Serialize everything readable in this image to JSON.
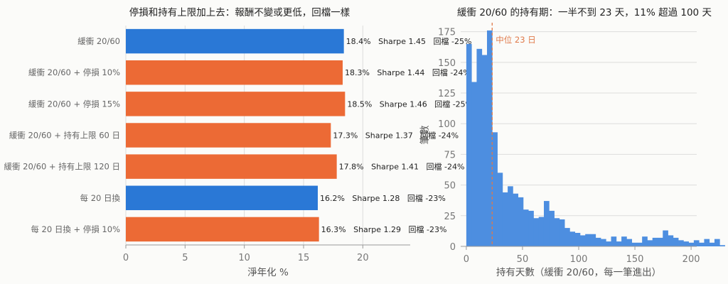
{
  "colors": {
    "baseline": "#2a78d6",
    "variant": "#ec6a35",
    "hist": "#4d8ee0",
    "median": "#e07a4a"
  },
  "chart_data": [
    {
      "type": "bar",
      "orientation": "horizontal",
      "title": "停損和持有上限加上去：報酬不變或更低，回檔一樣",
      "xlabel": "淨年化 %",
      "xlim": [
        0,
        24
      ],
      "xticks": [
        0,
        5,
        10,
        15,
        20
      ],
      "grid": "x",
      "categories": [
        "緩衝 20/60",
        "緩衝 20/60 + 停損 10%",
        "緩衝 20/60 + 停損 15%",
        "緩衝 20/60 + 持有上限 60 日",
        "緩衝 20/60 + 持有上限 120 日",
        "每 20 日換",
        "每 20 日換 + 停損 10%"
      ],
      "values": [
        18.4,
        18.3,
        18.5,
        17.3,
        17.8,
        16.2,
        16.3
      ],
      "groups": [
        "baseline",
        "variant",
        "variant",
        "variant",
        "variant",
        "baseline",
        "variant"
      ],
      "annotations": [
        "18.4%   Sharpe 1.45   回檔 -25%",
        "18.3%   Sharpe 1.44   回檔 -24%",
        "18.5%   Sharpe 1.46   回檔 -25%",
        "17.3%   Sharpe 1.37   回檔 -24%",
        "17.8%   Sharpe 1.41   回檔 -24%",
        "16.2%   Sharpe 1.28   回檔 -23%",
        "16.3%   Sharpe 1.29   回檔 -23%"
      ]
    },
    {
      "type": "histogram",
      "title": "緩衝 20/60 的持有期：一半不到 23 天，11% 超過 100 天",
      "xlabel": "持有天數（緩衝 20/60，每一筆進出）",
      "ylabel": "筆數",
      "xlim": [
        -5,
        205
      ],
      "ylim": [
        0,
        180
      ],
      "xticks": [
        0,
        50,
        100,
        150,
        200
      ],
      "yticks": [
        0,
        25,
        50,
        75,
        100,
        125,
        150,
        175
      ],
      "grid": "y",
      "bin_start": 0,
      "bin_width": 4.6,
      "counts": [
        165,
        134,
        161,
        156,
        176,
        93,
        60,
        44,
        49,
        43,
        40,
        30,
        29,
        23,
        24,
        37,
        29,
        23,
        22,
        15,
        12,
        11,
        9,
        10,
        10,
        7,
        6,
        4,
        8,
        4,
        8,
        6,
        3,
        3,
        8,
        5,
        7,
        7,
        13,
        9,
        7,
        5,
        4,
        3,
        5,
        3,
        6,
        3,
        6,
        1
      ],
      "median": 23,
      "median_label": "中位 23 日"
    }
  ]
}
